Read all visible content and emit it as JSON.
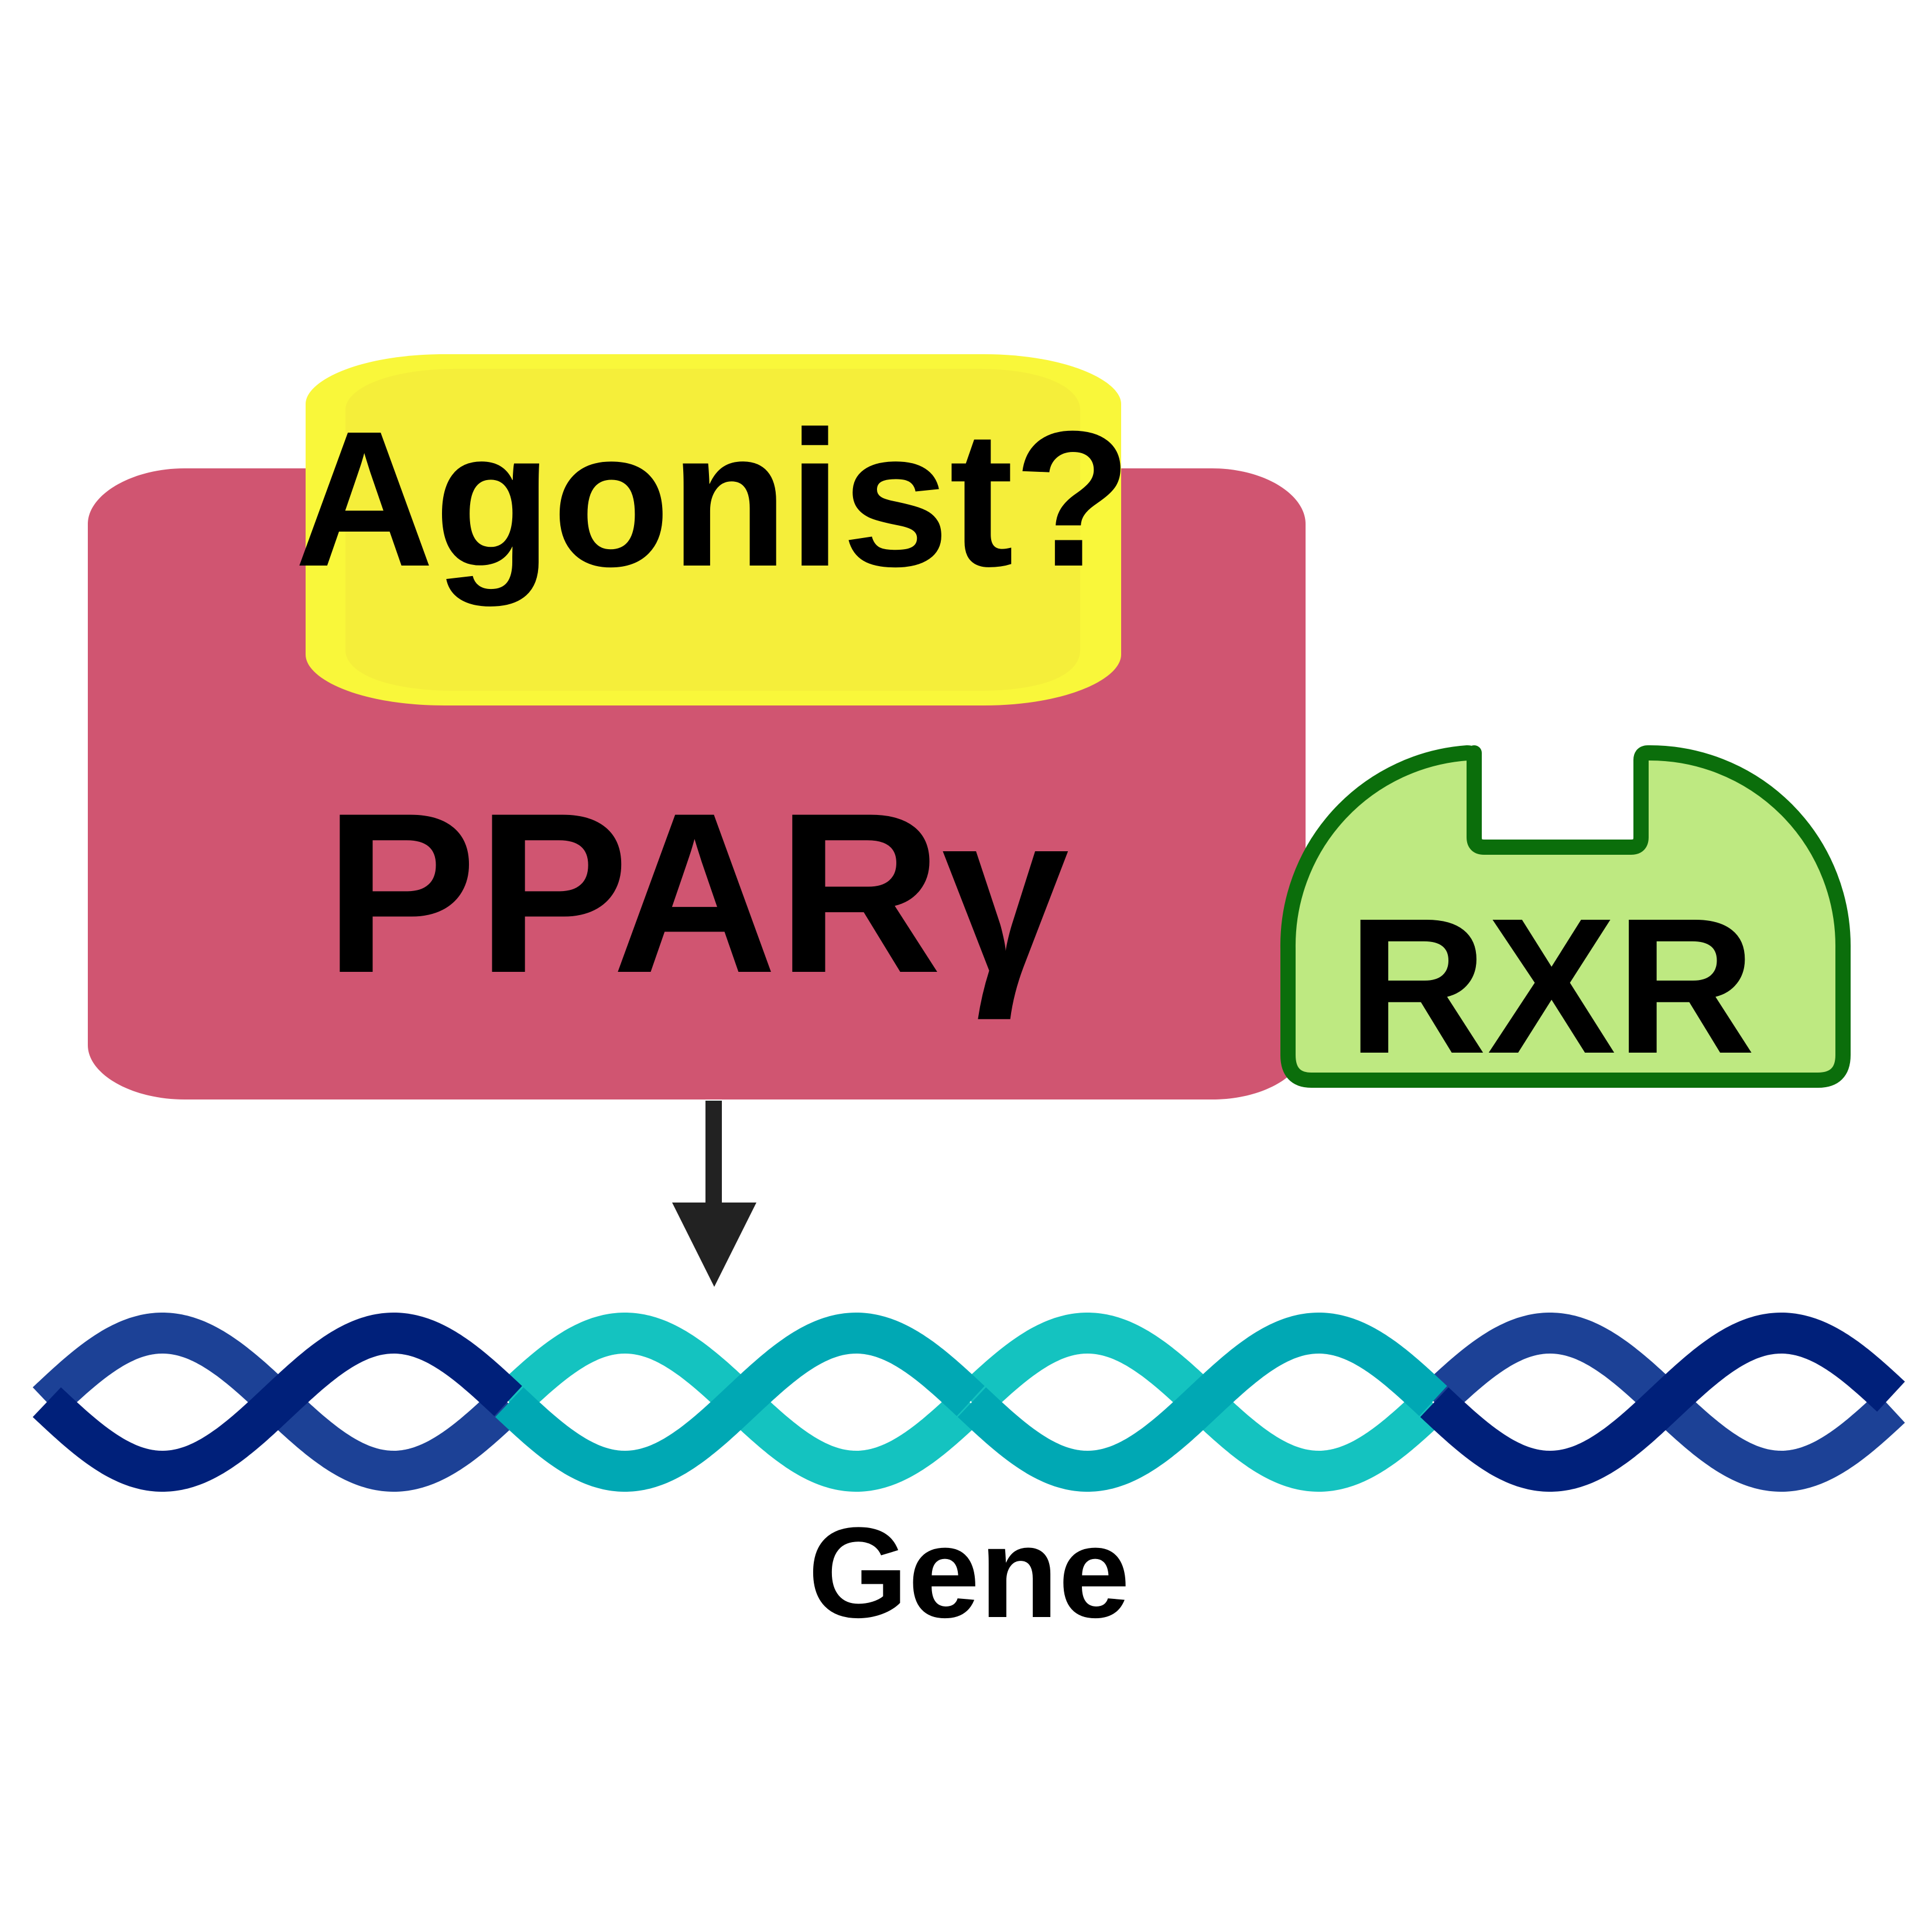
{
  "labels": {
    "agonist": "Agonist?",
    "ppar": "PPARγ",
    "rxr": "RXR",
    "gene": "Gene"
  },
  "colors": {
    "ppar_fill": "#D05571",
    "agonist_fill": "#F9F73A",
    "agonist_inner": "#F5EE3A",
    "rxr_fill": "#BEE981",
    "rxr_stroke": "#0B6E0B",
    "arrow": "#222222",
    "text": "#000000",
    "dna_outer_front": "#00207A",
    "dna_outer_back": "#1C4196",
    "dna_inner_front": "#00A8B4",
    "dna_inner_back": "#14C3C0"
  },
  "icons": {
    "arrow": "down-arrow-icon",
    "dna": "dna-double-helix-icon"
  }
}
